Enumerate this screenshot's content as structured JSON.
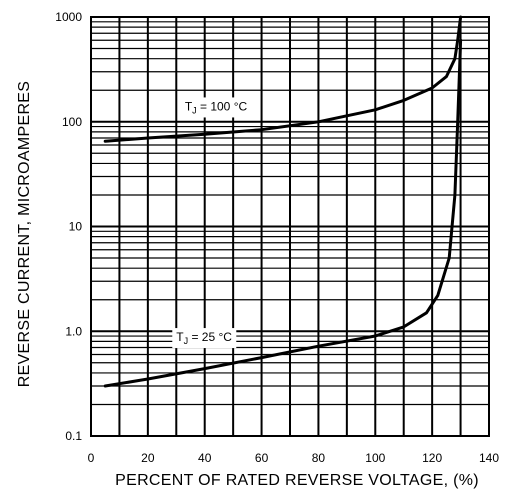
{
  "chart_data": {
    "type": "line",
    "title": "",
    "xlabel": "PERCENT OF RATED REVERSE VOLTAGE, (%)",
    "ylabel": "REVERSE CURRENT, MICROAMPERES",
    "xlim": [
      0,
      140
    ],
    "ylim": [
      0.1,
      1000
    ],
    "y_scale": "log",
    "grid": true,
    "x_ticks": [
      "0",
      "20",
      "40",
      "60",
      "80",
      "100",
      "120",
      "140"
    ],
    "y_ticks": [
      "0.1",
      "1.0",
      "10",
      "100",
      "1000"
    ],
    "series": [
      {
        "name": "",
        "annotation": {
          "prefix": "T",
          "sub": "J",
          "text": " = 100 °C",
          "x": 33,
          "y": 140
        },
        "points": [
          [
            5,
            65
          ],
          [
            20,
            70
          ],
          [
            40,
            76
          ],
          [
            60,
            84
          ],
          [
            80,
            100
          ],
          [
            100,
            130
          ],
          [
            110,
            160
          ],
          [
            120,
            210
          ],
          [
            125,
            270
          ],
          [
            128,
            400
          ],
          [
            129,
            600
          ],
          [
            130,
            1000
          ]
        ]
      },
      {
        "name": "",
        "annotation": {
          "prefix": "T",
          "sub": "J",
          "text": " = 25 °C",
          "x": 30,
          "y": 0.88
        },
        "points": [
          [
            5,
            0.3
          ],
          [
            20,
            0.35
          ],
          [
            40,
            0.44
          ],
          [
            60,
            0.56
          ],
          [
            80,
            0.72
          ],
          [
            100,
            0.9
          ],
          [
            110,
            1.1
          ],
          [
            118,
            1.5
          ],
          [
            122,
            2.2
          ],
          [
            126,
            5
          ],
          [
            128,
            20
          ],
          [
            129,
            100
          ],
          [
            130,
            600
          ]
        ]
      }
    ]
  }
}
